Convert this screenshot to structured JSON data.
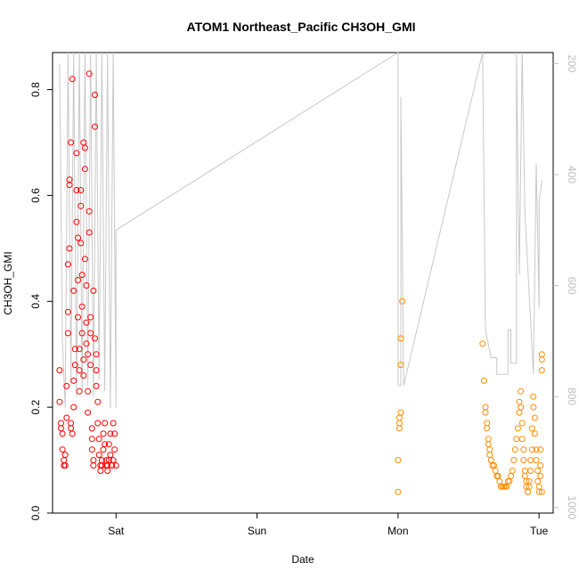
{
  "chart_data": {
    "type": "scatter",
    "title": "ATOM1 Northeast_Pacific CH3OH_GMI",
    "xlabel": "Date",
    "ylabel": "CH3OH_GMI",
    "x_ticks": [
      "Sat",
      "Sun",
      "Mon",
      "Tue"
    ],
    "y_ticks": [
      "0.0",
      "0.2",
      "0.4",
      "0.6",
      "0.8"
    ],
    "ylim": [
      0,
      0.87
    ],
    "right_axis": {
      "ticks": [
        "200",
        "400",
        "600",
        "800",
        "1000"
      ],
      "range_top_to_bottom": [
        180,
        1010
      ],
      "color": "#bdbdbd"
    },
    "x_range_days": [
      -0.45,
      3.1
    ],
    "series": [
      {
        "color": "#ff0000",
        "points": [
          [
            -0.4,
            0.27
          ],
          [
            -0.4,
            0.21
          ],
          [
            -0.39,
            0.17
          ],
          [
            -0.39,
            0.16
          ],
          [
            -0.38,
            0.15
          ],
          [
            -0.38,
            0.12
          ],
          [
            -0.37,
            0.1
          ],
          [
            -0.37,
            0.09
          ],
          [
            -0.36,
            0.09
          ],
          [
            -0.36,
            0.11
          ],
          [
            -0.35,
            0.18
          ],
          [
            -0.35,
            0.24
          ],
          [
            -0.34,
            0.34
          ],
          [
            -0.34,
            0.38
          ],
          [
            -0.34,
            0.47
          ],
          [
            -0.33,
            0.5
          ],
          [
            -0.33,
            0.62
          ],
          [
            -0.33,
            0.63
          ],
          [
            -0.32,
            0.7
          ],
          [
            -0.32,
            0.17
          ],
          [
            -0.32,
            0.16
          ],
          [
            -0.31,
            0.15
          ],
          [
            -0.31,
            0.82
          ],
          [
            -0.3,
            0.42
          ],
          [
            -0.3,
            0.25
          ],
          [
            -0.3,
            0.2
          ],
          [
            -0.29,
            0.28
          ],
          [
            -0.29,
            0.31
          ],
          [
            -0.28,
            0.68
          ],
          [
            -0.28,
            0.61
          ],
          [
            -0.28,
            0.55
          ],
          [
            -0.27,
            0.52
          ],
          [
            -0.27,
            0.44
          ],
          [
            -0.27,
            0.37
          ],
          [
            -0.26,
            0.31
          ],
          [
            -0.26,
            0.27
          ],
          [
            -0.26,
            0.23
          ],
          [
            -0.25,
            0.58
          ],
          [
            -0.25,
            0.61
          ],
          [
            -0.25,
            0.51
          ],
          [
            -0.24,
            0.45
          ],
          [
            -0.24,
            0.39
          ],
          [
            -0.24,
            0.34
          ],
          [
            -0.23,
            0.29
          ],
          [
            -0.23,
            0.26
          ],
          [
            -0.23,
            0.7
          ],
          [
            -0.22,
            0.69
          ],
          [
            -0.22,
            0.65
          ],
          [
            -0.22,
            0.48
          ],
          [
            -0.21,
            0.43
          ],
          [
            -0.21,
            0.36
          ],
          [
            -0.21,
            0.32
          ],
          [
            -0.2,
            0.3
          ],
          [
            -0.2,
            0.23
          ],
          [
            -0.2,
            0.19
          ],
          [
            -0.19,
            0.83
          ],
          [
            -0.19,
            0.57
          ],
          [
            -0.19,
            0.53
          ],
          [
            -0.18,
            0.37
          ],
          [
            -0.18,
            0.34
          ],
          [
            -0.18,
            0.28
          ],
          [
            -0.17,
            0.16
          ],
          [
            -0.17,
            0.14
          ],
          [
            -0.17,
            0.12
          ],
          [
            -0.16,
            0.1
          ],
          [
            -0.16,
            0.09
          ],
          [
            -0.16,
            0.42
          ],
          [
            -0.15,
            0.73
          ],
          [
            -0.15,
            0.79
          ],
          [
            -0.15,
            0.33
          ],
          [
            -0.14,
            0.3
          ],
          [
            -0.14,
            0.27
          ],
          [
            -0.14,
            0.24
          ],
          [
            -0.13,
            0.21
          ],
          [
            -0.13,
            0.17
          ],
          [
            -0.12,
            0.14
          ],
          [
            -0.12,
            0.11
          ],
          [
            -0.11,
            0.09
          ],
          [
            -0.11,
            0.08
          ],
          [
            -0.1,
            0.09
          ],
          [
            -0.1,
            0.1
          ],
          [
            -0.09,
            0.12
          ],
          [
            -0.09,
            0.15
          ],
          [
            -0.08,
            0.17
          ],
          [
            -0.08,
            0.13
          ],
          [
            -0.07,
            0.1
          ],
          [
            -0.07,
            0.09
          ],
          [
            -0.06,
            0.08
          ],
          [
            -0.06,
            0.09
          ],
          [
            -0.05,
            0.1
          ],
          [
            -0.05,
            0.13
          ],
          [
            -0.04,
            0.15
          ],
          [
            -0.04,
            0.11
          ],
          [
            -0.03,
            0.09
          ],
          [
            -0.03,
            0.09
          ],
          [
            -0.02,
            0.1
          ],
          [
            -0.02,
            0.17
          ],
          [
            -0.01,
            0.15
          ],
          [
            -0.01,
            0.12
          ],
          [
            0.0,
            0.09
          ]
        ]
      },
      {
        "color": "#ff8c00",
        "points": [
          [
            2.0,
            0.04
          ],
          [
            2.0,
            0.1
          ],
          [
            2.01,
            0.16
          ],
          [
            2.01,
            0.17
          ],
          [
            2.01,
            0.18
          ],
          [
            2.02,
            0.19
          ],
          [
            2.02,
            0.28
          ],
          [
            2.02,
            0.33
          ],
          [
            2.03,
            0.4
          ],
          [
            2.6,
            0.32
          ],
          [
            2.61,
            0.25
          ],
          [
            2.62,
            0.2
          ],
          [
            2.62,
            0.19
          ],
          [
            2.63,
            0.17
          ],
          [
            2.63,
            0.16
          ],
          [
            2.64,
            0.14
          ],
          [
            2.64,
            0.13
          ],
          [
            2.65,
            0.12
          ],
          [
            2.65,
            0.11
          ],
          [
            2.66,
            0.1
          ],
          [
            2.67,
            0.09
          ],
          [
            2.68,
            0.09
          ],
          [
            2.69,
            0.08
          ],
          [
            2.7,
            0.07
          ],
          [
            2.71,
            0.07
          ],
          [
            2.72,
            0.06
          ],
          [
            2.73,
            0.05
          ],
          [
            2.74,
            0.05
          ],
          [
            2.75,
            0.05
          ],
          [
            2.76,
            0.05
          ],
          [
            2.77,
            0.05
          ],
          [
            2.78,
            0.06
          ],
          [
            2.79,
            0.06
          ],
          [
            2.8,
            0.07
          ],
          [
            2.81,
            0.08
          ],
          [
            2.82,
            0.1
          ],
          [
            2.83,
            0.12
          ],
          [
            2.84,
            0.14
          ],
          [
            2.85,
            0.16
          ],
          [
            2.86,
            0.19
          ],
          [
            2.86,
            0.21
          ],
          [
            2.87,
            0.23
          ],
          [
            2.87,
            0.2
          ],
          [
            2.88,
            0.17
          ],
          [
            2.88,
            0.14
          ],
          [
            2.89,
            0.12
          ],
          [
            2.89,
            0.1
          ],
          [
            2.9,
            0.08
          ],
          [
            2.9,
            0.07
          ],
          [
            2.91,
            0.06
          ],
          [
            2.91,
            0.05
          ],
          [
            2.92,
            0.04
          ],
          [
            2.92,
            0.04
          ],
          [
            2.93,
            0.05
          ],
          [
            2.93,
            0.06
          ],
          [
            2.94,
            0.08
          ],
          [
            2.94,
            0.1
          ],
          [
            2.95,
            0.12
          ],
          [
            2.95,
            0.16
          ],
          [
            2.96,
            0.2
          ],
          [
            2.96,
            0.22
          ],
          [
            2.97,
            0.18
          ],
          [
            2.97,
            0.15
          ],
          [
            2.98,
            0.12
          ],
          [
            2.98,
            0.1
          ],
          [
            2.99,
            0.08
          ],
          [
            2.99,
            0.06
          ],
          [
            3.0,
            0.04
          ],
          [
            3.0,
            0.05
          ],
          [
            3.01,
            0.07
          ],
          [
            3.01,
            0.09
          ],
          [
            3.01,
            0.12
          ],
          [
            3.02,
            0.27
          ],
          [
            3.02,
            0.29
          ],
          [
            3.02,
            0.3
          ],
          [
            3.02,
            0.04
          ]
        ]
      }
    ],
    "pressure_line": {
      "color": "#c8c8c8",
      "points": [
        [
          -0.4,
          200
        ],
        [
          -0.38,
          700
        ],
        [
          -0.36,
          820
        ],
        [
          -0.34,
          180
        ],
        [
          -0.32,
          780
        ],
        [
          -0.3,
          180
        ],
        [
          -0.28,
          800
        ],
        [
          -0.26,
          180
        ],
        [
          -0.24,
          790
        ],
        [
          -0.22,
          180
        ],
        [
          -0.2,
          780
        ],
        [
          -0.18,
          180
        ],
        [
          -0.16,
          800
        ],
        [
          -0.14,
          180
        ],
        [
          -0.12,
          770
        ],
        [
          -0.1,
          180
        ],
        [
          -0.08,
          790
        ],
        [
          -0.06,
          180
        ],
        [
          -0.04,
          820
        ],
        [
          -0.02,
          180
        ],
        [
          0.0,
          820
        ],
        [
          0.0,
          500
        ],
        [
          2.0,
          180
        ],
        [
          2.0,
          780
        ],
        [
          2.02,
          780
        ],
        [
          2.02,
          260
        ],
        [
          2.04,
          780
        ],
        [
          2.6,
          180
        ],
        [
          2.62,
          680
        ],
        [
          2.66,
          730
        ],
        [
          2.7,
          730
        ],
        [
          2.7,
          760
        ],
        [
          2.78,
          760
        ],
        [
          2.78,
          680
        ],
        [
          2.8,
          680
        ],
        [
          2.8,
          740
        ],
        [
          2.84,
          740
        ],
        [
          2.84,
          180
        ],
        [
          2.86,
          580
        ],
        [
          2.88,
          180
        ],
        [
          2.9,
          470
        ],
        [
          2.96,
          760
        ],
        [
          2.98,
          380
        ],
        [
          3.0,
          640
        ],
        [
          3.0,
          450
        ],
        [
          3.02,
          410
        ]
      ]
    }
  }
}
